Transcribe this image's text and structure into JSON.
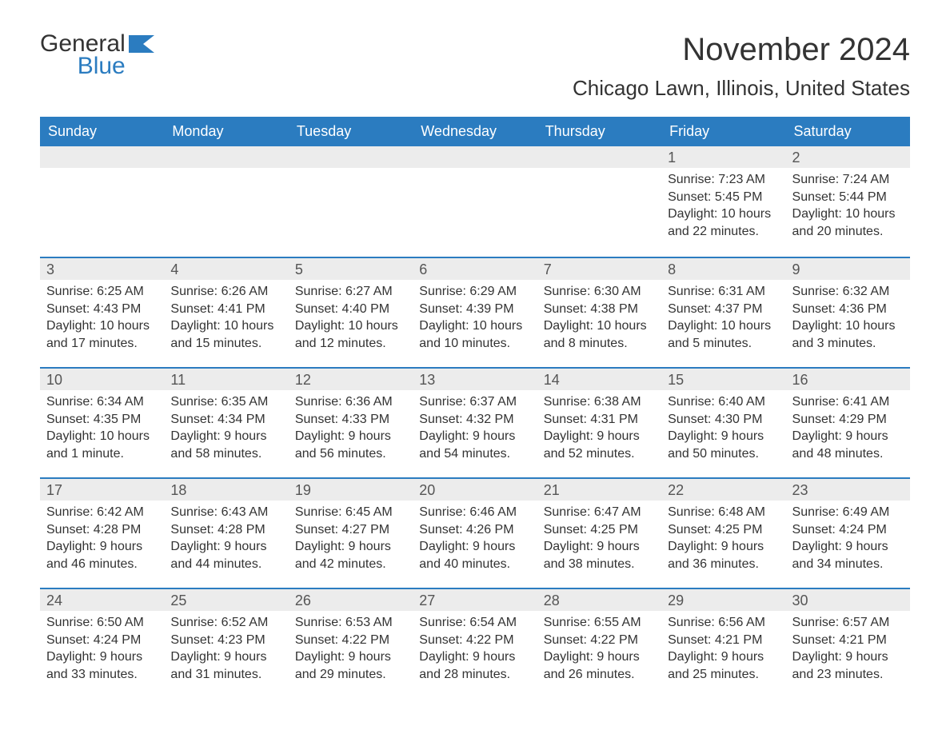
{
  "brand": {
    "general": "General",
    "blue": "Blue"
  },
  "title": "November 2024",
  "location": "Chicago Lawn, Illinois, United States",
  "colors": {
    "header_bg": "#2b7cc0",
    "header_text": "#ffffff",
    "daynum_bg": "#ececec",
    "body_text": "#333333",
    "rule": "#2b7cc0",
    "page_bg": "#ffffff"
  },
  "weekdays": [
    "Sunday",
    "Monday",
    "Tuesday",
    "Wednesday",
    "Thursday",
    "Friday",
    "Saturday"
  ],
  "weeks": [
    [
      null,
      null,
      null,
      null,
      null,
      {
        "n": "1",
        "sunrise": "Sunrise: 7:23 AM",
        "sunset": "Sunset: 5:45 PM",
        "daylight": "Daylight: 10 hours and 22 minutes."
      },
      {
        "n": "2",
        "sunrise": "Sunrise: 7:24 AM",
        "sunset": "Sunset: 5:44 PM",
        "daylight": "Daylight: 10 hours and 20 minutes."
      }
    ],
    [
      {
        "n": "3",
        "sunrise": "Sunrise: 6:25 AM",
        "sunset": "Sunset: 4:43 PM",
        "daylight": "Daylight: 10 hours and 17 minutes."
      },
      {
        "n": "4",
        "sunrise": "Sunrise: 6:26 AM",
        "sunset": "Sunset: 4:41 PM",
        "daylight": "Daylight: 10 hours and 15 minutes."
      },
      {
        "n": "5",
        "sunrise": "Sunrise: 6:27 AM",
        "sunset": "Sunset: 4:40 PM",
        "daylight": "Daylight: 10 hours and 12 minutes."
      },
      {
        "n": "6",
        "sunrise": "Sunrise: 6:29 AM",
        "sunset": "Sunset: 4:39 PM",
        "daylight": "Daylight: 10 hours and 10 minutes."
      },
      {
        "n": "7",
        "sunrise": "Sunrise: 6:30 AM",
        "sunset": "Sunset: 4:38 PM",
        "daylight": "Daylight: 10 hours and 8 minutes."
      },
      {
        "n": "8",
        "sunrise": "Sunrise: 6:31 AM",
        "sunset": "Sunset: 4:37 PM",
        "daylight": "Daylight: 10 hours and 5 minutes."
      },
      {
        "n": "9",
        "sunrise": "Sunrise: 6:32 AM",
        "sunset": "Sunset: 4:36 PM",
        "daylight": "Daylight: 10 hours and 3 minutes."
      }
    ],
    [
      {
        "n": "10",
        "sunrise": "Sunrise: 6:34 AM",
        "sunset": "Sunset: 4:35 PM",
        "daylight": "Daylight: 10 hours and 1 minute."
      },
      {
        "n": "11",
        "sunrise": "Sunrise: 6:35 AM",
        "sunset": "Sunset: 4:34 PM",
        "daylight": "Daylight: 9 hours and 58 minutes."
      },
      {
        "n": "12",
        "sunrise": "Sunrise: 6:36 AM",
        "sunset": "Sunset: 4:33 PM",
        "daylight": "Daylight: 9 hours and 56 minutes."
      },
      {
        "n": "13",
        "sunrise": "Sunrise: 6:37 AM",
        "sunset": "Sunset: 4:32 PM",
        "daylight": "Daylight: 9 hours and 54 minutes."
      },
      {
        "n": "14",
        "sunrise": "Sunrise: 6:38 AM",
        "sunset": "Sunset: 4:31 PM",
        "daylight": "Daylight: 9 hours and 52 minutes."
      },
      {
        "n": "15",
        "sunrise": "Sunrise: 6:40 AM",
        "sunset": "Sunset: 4:30 PM",
        "daylight": "Daylight: 9 hours and 50 minutes."
      },
      {
        "n": "16",
        "sunrise": "Sunrise: 6:41 AM",
        "sunset": "Sunset: 4:29 PM",
        "daylight": "Daylight: 9 hours and 48 minutes."
      }
    ],
    [
      {
        "n": "17",
        "sunrise": "Sunrise: 6:42 AM",
        "sunset": "Sunset: 4:28 PM",
        "daylight": "Daylight: 9 hours and 46 minutes."
      },
      {
        "n": "18",
        "sunrise": "Sunrise: 6:43 AM",
        "sunset": "Sunset: 4:28 PM",
        "daylight": "Daylight: 9 hours and 44 minutes."
      },
      {
        "n": "19",
        "sunrise": "Sunrise: 6:45 AM",
        "sunset": "Sunset: 4:27 PM",
        "daylight": "Daylight: 9 hours and 42 minutes."
      },
      {
        "n": "20",
        "sunrise": "Sunrise: 6:46 AM",
        "sunset": "Sunset: 4:26 PM",
        "daylight": "Daylight: 9 hours and 40 minutes."
      },
      {
        "n": "21",
        "sunrise": "Sunrise: 6:47 AM",
        "sunset": "Sunset: 4:25 PM",
        "daylight": "Daylight: 9 hours and 38 minutes."
      },
      {
        "n": "22",
        "sunrise": "Sunrise: 6:48 AM",
        "sunset": "Sunset: 4:25 PM",
        "daylight": "Daylight: 9 hours and 36 minutes."
      },
      {
        "n": "23",
        "sunrise": "Sunrise: 6:49 AM",
        "sunset": "Sunset: 4:24 PM",
        "daylight": "Daylight: 9 hours and 34 minutes."
      }
    ],
    [
      {
        "n": "24",
        "sunrise": "Sunrise: 6:50 AM",
        "sunset": "Sunset: 4:24 PM",
        "daylight": "Daylight: 9 hours and 33 minutes."
      },
      {
        "n": "25",
        "sunrise": "Sunrise: 6:52 AM",
        "sunset": "Sunset: 4:23 PM",
        "daylight": "Daylight: 9 hours and 31 minutes."
      },
      {
        "n": "26",
        "sunrise": "Sunrise: 6:53 AM",
        "sunset": "Sunset: 4:22 PM",
        "daylight": "Daylight: 9 hours and 29 minutes."
      },
      {
        "n": "27",
        "sunrise": "Sunrise: 6:54 AM",
        "sunset": "Sunset: 4:22 PM",
        "daylight": "Daylight: 9 hours and 28 minutes."
      },
      {
        "n": "28",
        "sunrise": "Sunrise: 6:55 AM",
        "sunset": "Sunset: 4:22 PM",
        "daylight": "Daylight: 9 hours and 26 minutes."
      },
      {
        "n": "29",
        "sunrise": "Sunrise: 6:56 AM",
        "sunset": "Sunset: 4:21 PM",
        "daylight": "Daylight: 9 hours and 25 minutes."
      },
      {
        "n": "30",
        "sunrise": "Sunrise: 6:57 AM",
        "sunset": "Sunset: 4:21 PM",
        "daylight": "Daylight: 9 hours and 23 minutes."
      }
    ]
  ]
}
